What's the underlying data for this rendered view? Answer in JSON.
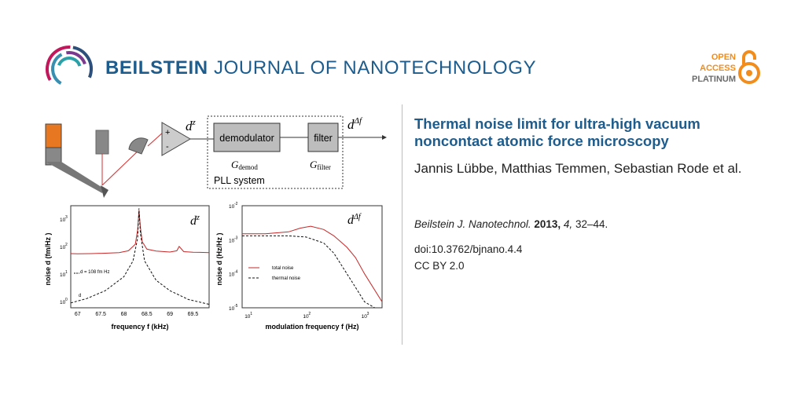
{
  "header": {
    "journal_bold": "BEILSTEIN",
    "journal_rest": " JOURNAL OF NANOTECHNOLOGY",
    "open_access": [
      "OPEN",
      "ACCESS",
      "PLATINUM"
    ]
  },
  "article": {
    "title": "Thermal noise limit for ultra-high vacuum noncontact atomic force microscopy",
    "authors": "Jannis Lübbe, Matthias Temmen, Sebastian Rode et al.",
    "journal": "Beilstein J. Nanotechnol.",
    "year": "2013,",
    "volume": "4,",
    "pages": "32–44.",
    "doi": "doi:10.3762/bjnano.4.4",
    "license": "CC BY 2.0"
  },
  "figure": {
    "demodulator": "demodulator",
    "filter": "filter",
    "g_demod": "G",
    "g_demod_sub": "demod",
    "g_filter": "G",
    "g_filter_sub": "filter",
    "pll": "PLL system",
    "dz": "d",
    "dz_sup": "z",
    "ddf": "d",
    "ddf_sup": "Δf",
    "plus": "+",
    "minus": "-",
    "left_plot": {
      "ylabel": "noise d  (fm/Hz   )",
      "xlabel": "frequency f (kHz)",
      "xticks": [
        "67",
        "67.5",
        "68",
        "68.5",
        "69",
        "69.5"
      ],
      "yticks": [
        "10",
        "10",
        "10",
        "10"
      ],
      "yexp": [
        "3",
        "2",
        "1",
        "0"
      ],
      "annot_ds": "d    = 108 fm Hz",
      "annot_th": "d"
    },
    "right_plot": {
      "ylabel": "noise d    (Hz/Hz   )",
      "xlabel": "modulation frequency f  (Hz)",
      "xticks": [
        "10",
        "10",
        "10"
      ],
      "xexp": [
        "1",
        "2",
        "3"
      ],
      "yticks": [
        "10",
        "10",
        "10",
        "10",
        "10"
      ],
      "yexp": [
        "-2",
        "-3",
        "-4",
        "-5",
        "-6"
      ],
      "legend_tot": "total noise",
      "legend_th": "thermal noise"
    }
  },
  "chart_data": [
    {
      "type": "line",
      "xlabel": "frequency f (kHz)",
      "ylabel": "noise d^z (fm/Hz^1/2)",
      "xlim": [
        66.85,
        69.85
      ],
      "yscale": "log",
      "ylim": [
        0.6,
        3000
      ],
      "series": [
        {
          "name": "d^z",
          "x": [
            66.85,
            67.0,
            67.3,
            67.6,
            67.9,
            68.1,
            68.25,
            68.3,
            68.33,
            68.36,
            68.4,
            68.5,
            68.7,
            69.0,
            69.15,
            69.2,
            69.3,
            69.5,
            69.85
          ],
          "values": [
            55,
            54,
            55,
            57,
            60,
            70,
            120,
            400,
            2000,
            500,
            150,
            80,
            68,
            63,
            70,
            100,
            65,
            62,
            60
          ]
        },
        {
          "name": "d_th^z",
          "x": [
            66.85,
            67.2,
            67.6,
            68.0,
            68.2,
            68.3,
            68.33,
            68.36,
            68.45,
            68.7,
            69.0,
            69.4,
            69.85
          ],
          "values": [
            0.9,
            1.3,
            2.5,
            8,
            30,
            200,
            2400,
            300,
            30,
            6,
            2.5,
            1.2,
            0.8
          ]
        }
      ]
    },
    {
      "type": "line",
      "xlabel": "modulation frequency f_m (Hz)",
      "ylabel": "noise d^Δf (Hz/Hz^1/2)",
      "xscale": "log",
      "xlim": [
        8,
        2000
      ],
      "yscale": "log",
      "ylim": [
        1e-05,
        0.01
      ],
      "series": [
        {
          "name": "total noise",
          "x": [
            8,
            20,
            50,
            80,
            120,
            200,
            300,
            500,
            700,
            1000,
            2000
          ],
          "values": [
            0.0015,
            0.0015,
            0.0017,
            0.0022,
            0.0025,
            0.002,
            0.0013,
            0.0006,
            0.0003,
            0.0001,
            1.5e-05
          ]
        },
        {
          "name": "thermal noise",
          "x": [
            8,
            20,
            50,
            100,
            200,
            300,
            500,
            700,
            1000,
            1500
          ],
          "values": [
            0.0013,
            0.0013,
            0.0013,
            0.0012,
            0.0008,
            0.0004,
            0.0001,
            4e-05,
            1.5e-05,
            1e-05
          ]
        }
      ]
    }
  ]
}
